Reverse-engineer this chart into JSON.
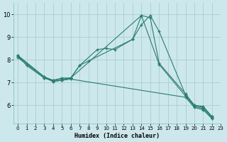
{
  "background_color": "#cde8ec",
  "grid_color": "#aacdd2",
  "line_color": "#2a7d6e",
  "xlabel": "Humidex (Indice chaleur)",
  "xlim": [
    -0.5,
    23
  ],
  "ylim": [
    5.2,
    10.5
  ],
  "xticks": [
    0,
    1,
    2,
    3,
    4,
    5,
    6,
    7,
    8,
    9,
    10,
    11,
    12,
    13,
    14,
    15,
    16,
    17,
    18,
    19,
    20,
    21,
    22,
    23
  ],
  "yticks": [
    6,
    7,
    8,
    9,
    10
  ],
  "line1_x": [
    0,
    1,
    3,
    4,
    5,
    6,
    7,
    9,
    10,
    11,
    13,
    14,
    15,
    16,
    19,
    20,
    21,
    22
  ],
  "line1_y": [
    8.2,
    7.75,
    7.2,
    7.1,
    7.2,
    7.2,
    7.75,
    8.45,
    8.5,
    8.45,
    8.9,
    9.95,
    9.85,
    7.85,
    6.5,
    6.0,
    5.95,
    5.5
  ],
  "line2_x": [
    0,
    3,
    4,
    5,
    6,
    7,
    8,
    13,
    14,
    15,
    16,
    19,
    20,
    21,
    22
  ],
  "line2_y": [
    8.2,
    7.25,
    7.05,
    7.1,
    7.2,
    7.75,
    7.95,
    8.9,
    9.55,
    9.95,
    9.25,
    6.45,
    6.0,
    5.9,
    5.5
  ],
  "line3_x": [
    0,
    3,
    4,
    5,
    6,
    14,
    16,
    19,
    20,
    21,
    22
  ],
  "line3_y": [
    8.15,
    7.25,
    7.1,
    7.15,
    7.2,
    9.95,
    7.8,
    6.4,
    5.95,
    5.85,
    5.45
  ],
  "line4_x": [
    0,
    3,
    4,
    5,
    6,
    19,
    20,
    21,
    22
  ],
  "line4_y": [
    8.1,
    7.2,
    7.05,
    7.1,
    7.15,
    6.35,
    5.9,
    5.8,
    5.4
  ]
}
